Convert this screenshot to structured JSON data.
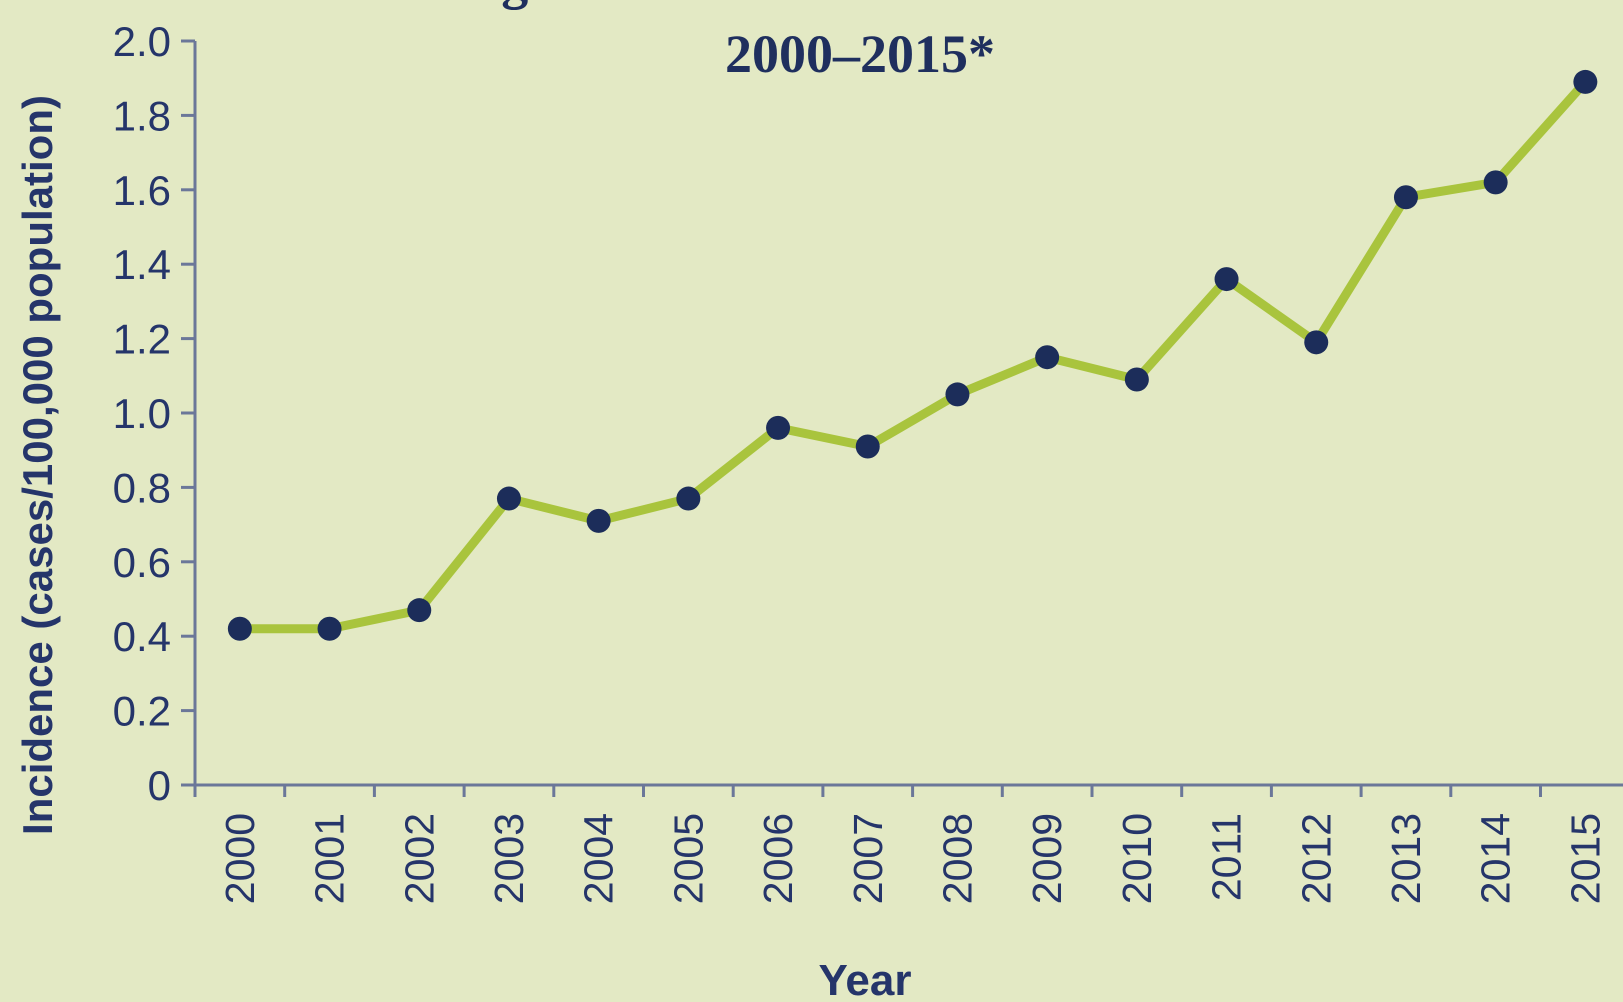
{
  "chart_data": {
    "type": "line",
    "title": "Legionnaires' Disease Is On the Rise",
    "subtitle": "2000–2015*",
    "x_label": "Year",
    "y_label": "Incidence (cases/100,000 population)",
    "categories": [
      "2000",
      "2001",
      "2002",
      "2003",
      "2004",
      "2005",
      "2006",
      "2007",
      "2008",
      "2009",
      "2010",
      "2011",
      "2012",
      "2013",
      "2014",
      "2015"
    ],
    "series": [
      {
        "line_color": "#a9c43d",
        "color": "#1c2d5a",
        "values": [
          0.42,
          0.42,
          0.47,
          0.77,
          0.71,
          0.77,
          0.96,
          0.91,
          1.05,
          1.15,
          1.09,
          1.36,
          1.19,
          1.58,
          1.62,
          1.89
        ]
      }
    ],
    "ylim": [
      0,
      2
    ],
    "yticks": [
      0,
      0.2,
      0.4,
      0.6,
      0.8,
      {
        "value": 1,
        "label": "1.0"
      },
      1.2,
      1.4,
      1.6,
      1.8,
      {
        "value": 2,
        "label": "2.0"
      }
    ],
    "grid": false
  }
}
